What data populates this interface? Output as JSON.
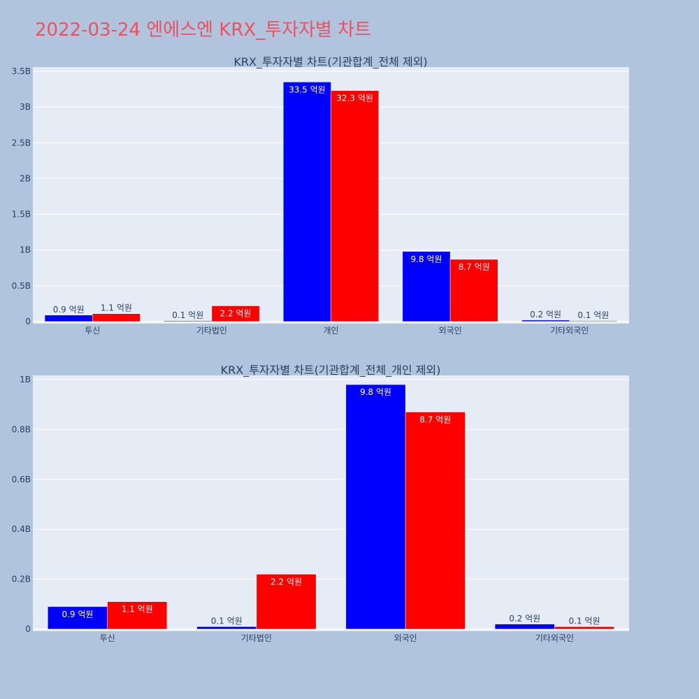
{
  "page": {
    "title": "2022-03-24 엔에스엔 KRX_투자자별 차트"
  },
  "colors": {
    "background": "#b0c4de",
    "plot_background": "#e5ecf6",
    "series_a": "#0000ff",
    "series_b": "#ff0000",
    "title": "#ef5060",
    "text": "#2a3f5f"
  },
  "chart_data": [
    {
      "type": "bar",
      "title": "KRX_투자자별 차트(기관합계_전체 제외)",
      "categories": [
        "투신",
        "기타법인",
        "개인",
        "외국인",
        "기타외국인"
      ],
      "series": [
        {
          "values": [
            90000000,
            10000000,
            3350000000,
            980000000,
            20000000
          ],
          "labels": [
            "0.9 억원",
            "0.1 억원",
            "33.5 억원",
            "9.8 억원",
            "0.2 억원"
          ],
          "color": "#0000ff"
        },
        {
          "values": [
            110000000,
            220000000,
            3230000000,
            870000000,
            10000000
          ],
          "labels": [
            "1.1 억원",
            "2.2 억원",
            "32.3 억원",
            "8.7 억원",
            "0.1 억원"
          ],
          "color": "#ff0000"
        }
      ],
      "ylim": [
        0,
        3500000000
      ],
      "yticks": [
        0,
        500000000,
        1000000000,
        1500000000,
        2000000000,
        2500000000,
        3000000000,
        3500000000
      ],
      "ytick_labels": [
        "0",
        "0.5B",
        "1B",
        "1.5B",
        "2B",
        "2.5B",
        "3B",
        "3.5B"
      ],
      "grid": true,
      "xlabel": "",
      "ylabel": ""
    },
    {
      "type": "bar",
      "title": "KRX_투자자별 차트(기관합계_전체_개인 제외)",
      "categories": [
        "투신",
        "기타법인",
        "외국인",
        "기타외국인"
      ],
      "series": [
        {
          "values": [
            90000000,
            10000000,
            980000000,
            20000000
          ],
          "labels": [
            "0.9 억원",
            "0.1 억원",
            "9.8 억원",
            "0.2 억원"
          ],
          "color": "#0000ff"
        },
        {
          "values": [
            110000000,
            220000000,
            870000000,
            10000000
          ],
          "labels": [
            "1.1 억원",
            "2.2 억원",
            "8.7 억원",
            "0.1 억원"
          ],
          "color": "#ff0000"
        }
      ],
      "ylim": [
        0,
        1000000000
      ],
      "yticks": [
        0,
        200000000,
        400000000,
        600000000,
        800000000,
        1000000000
      ],
      "ytick_labels": [
        "0",
        "0.2B",
        "0.4B",
        "0.6B",
        "0.8B",
        "1B"
      ],
      "grid": true,
      "xlabel": "",
      "ylabel": ""
    }
  ]
}
